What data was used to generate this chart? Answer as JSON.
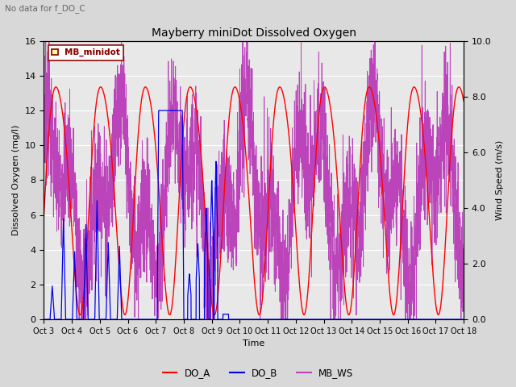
{
  "title": "Mayberry miniDot Dissolved Oxygen",
  "subtitle": "No data for f_DO_C",
  "xlabel": "Time",
  "ylabel_left": "Dissolved Oxygen (mg/l)",
  "ylabel_right": "Wind Speed (m/s)",
  "ylim_left": [
    0,
    16
  ],
  "ylim_right": [
    0.0,
    10.0
  ],
  "yticks_left": [
    0,
    2,
    4,
    6,
    8,
    10,
    12,
    14,
    16
  ],
  "yticks_right": [
    0.0,
    2.0,
    4.0,
    6.0,
    8.0,
    10.0
  ],
  "xtick_labels": [
    "Oct 3",
    "Oct 4",
    "Oct 5",
    "Oct 6",
    "Oct 7",
    "Oct 8",
    "Oct 9",
    "Oct 10",
    "Oct 11",
    "Oct 12",
    "Oct 13",
    "Oct 14",
    "Oct 15",
    "Oct 16",
    "Oct 17",
    "Oct 18"
  ],
  "legend_label_box": "MB_minidot",
  "legend_entries": [
    "DO_A",
    "DO_B",
    "MB_WS"
  ],
  "color_DO_A": "#ff0000",
  "color_DO_B": "#0000ee",
  "color_MB_WS": "#bb44bb",
  "bg_color": "#d8d8d8",
  "plot_bg_color": "#e8e8e8"
}
